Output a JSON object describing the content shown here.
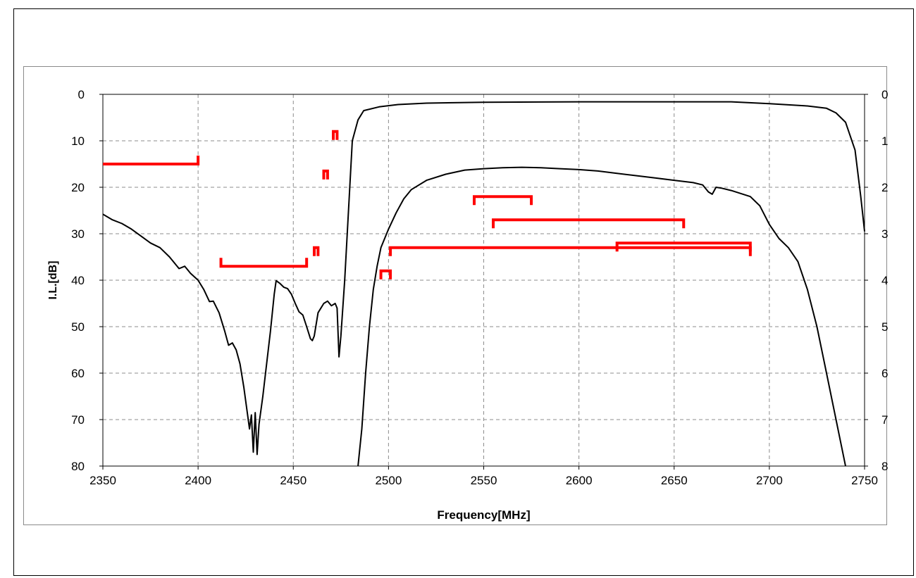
{
  "chart_data": {
    "type": "line",
    "title": "",
    "xlabel": "Frequency[MHz]",
    "ylabel": "I.L.[dB]",
    "xlim": [
      2350,
      2750
    ],
    "ylim": [
      80,
      0
    ],
    "y2lim": [
      8,
      0
    ],
    "x_ticks": [
      "2350",
      "2400",
      "2450",
      "2500",
      "2550",
      "2600",
      "2650",
      "2700",
      "2750"
    ],
    "y_ticks": [
      "0",
      "10",
      "20",
      "30",
      "40",
      "50",
      "60",
      "70",
      "80"
    ],
    "y2_ticks": [
      "0",
      "1",
      "2",
      "3",
      "4",
      "5",
      "6",
      "7",
      "8"
    ],
    "grid": true,
    "series": [
      {
        "axis": "left",
        "color": "#000000",
        "points": [
          [
            2350,
            25.8
          ],
          [
            2355,
            27
          ],
          [
            2360,
            27.8
          ],
          [
            2365,
            29
          ],
          [
            2370,
            30.5
          ],
          [
            2375,
            32
          ],
          [
            2380,
            33
          ],
          [
            2385,
            35
          ],
          [
            2390,
            37.5
          ],
          [
            2393,
            37
          ],
          [
            2396,
            38.5
          ],
          [
            2400,
            40
          ],
          [
            2403,
            42
          ],
          [
            2406,
            44.6
          ],
          [
            2408,
            44.5
          ],
          [
            2411,
            47
          ],
          [
            2414,
            51
          ],
          [
            2416,
            54
          ],
          [
            2418,
            53.5
          ],
          [
            2420,
            55
          ],
          [
            2422,
            58
          ],
          [
            2424,
            63
          ],
          [
            2426,
            69
          ],
          [
            2427,
            72
          ],
          [
            2428,
            69
          ],
          [
            2429,
            77
          ],
          [
            2430,
            68.5
          ],
          [
            2431,
            77.5
          ],
          [
            2432,
            71
          ],
          [
            2434,
            65
          ],
          [
            2436,
            58
          ],
          [
            2438,
            51
          ],
          [
            2440,
            43
          ],
          [
            2441,
            40.1
          ],
          [
            2443,
            40.7
          ],
          [
            2445,
            41.5
          ],
          [
            2447,
            41.8
          ],
          [
            2449,
            43
          ],
          [
            2451,
            45
          ],
          [
            2453,
            46.8
          ],
          [
            2455,
            47.5
          ],
          [
            2457,
            50
          ],
          [
            2459,
            52.6
          ],
          [
            2460,
            53
          ],
          [
            2461,
            52
          ],
          [
            2463,
            47
          ],
          [
            2466,
            45
          ],
          [
            2468,
            44.5
          ],
          [
            2470,
            45.5
          ],
          [
            2472,
            45
          ],
          [
            2473,
            46
          ],
          [
            2474,
            56.5
          ],
          [
            2475,
            52
          ],
          [
            2477,
            40
          ],
          [
            2479,
            25
          ],
          [
            2481,
            10
          ],
          [
            2484,
            5.5
          ],
          [
            2487,
            3.5
          ],
          [
            2495,
            2.7
          ],
          [
            2505,
            2.2
          ],
          [
            2520,
            1.9
          ],
          [
            2550,
            1.7
          ],
          [
            2600,
            1.6
          ],
          [
            2650,
            1.6
          ],
          [
            2680,
            1.6
          ],
          [
            2700,
            2.0
          ],
          [
            2720,
            2.5
          ],
          [
            2730,
            3.0
          ],
          [
            2735,
            4.0
          ],
          [
            2740,
            6.0
          ],
          [
            2745,
            12
          ],
          [
            2748,
            22
          ],
          [
            2750,
            29.5
          ]
        ]
      },
      {
        "axis": "right",
        "color": "#000000",
        "points": [
          [
            2484,
            8.0
          ],
          [
            2486,
            7.2
          ],
          [
            2488,
            6.0
          ],
          [
            2490,
            5.0
          ],
          [
            2492,
            4.2
          ],
          [
            2494,
            3.7
          ],
          [
            2496,
            3.3
          ],
          [
            2500,
            2.9
          ],
          [
            2504,
            2.55
          ],
          [
            2508,
            2.25
          ],
          [
            2512,
            2.05
          ],
          [
            2520,
            1.85
          ],
          [
            2530,
            1.72
          ],
          [
            2540,
            1.63
          ],
          [
            2550,
            1.6
          ],
          [
            2560,
            1.58
          ],
          [
            2570,
            1.57
          ],
          [
            2580,
            1.58
          ],
          [
            2590,
            1.6
          ],
          [
            2600,
            1.62
          ],
          [
            2610,
            1.65
          ],
          [
            2620,
            1.7
          ],
          [
            2630,
            1.75
          ],
          [
            2640,
            1.8
          ],
          [
            2650,
            1.85
          ],
          [
            2660,
            1.9
          ],
          [
            2665,
            1.95
          ],
          [
            2668,
            2.1
          ],
          [
            2670,
            2.15
          ],
          [
            2672,
            2.0
          ],
          [
            2675,
            2.02
          ],
          [
            2680,
            2.07
          ],
          [
            2690,
            2.2
          ],
          [
            2695,
            2.4
          ],
          [
            2700,
            2.8
          ],
          [
            2705,
            3.1
          ],
          [
            2710,
            3.3
          ],
          [
            2715,
            3.6
          ],
          [
            2720,
            4.2
          ],
          [
            2725,
            5.0
          ],
          [
            2730,
            6.0
          ],
          [
            2735,
            7.0
          ],
          [
            2738,
            7.6
          ],
          [
            2740,
            8.0
          ]
        ]
      }
    ],
    "masks": [
      {
        "color": "#ff0000",
        "x1": 2350,
        "x2": 2400,
        "y": 15,
        "tick_ends": "right",
        "tick_dir": "up"
      },
      {
        "color": "#ff0000",
        "x1": 2412,
        "x2": 2457,
        "y": 37,
        "tick_ends": "both",
        "tick_dir": "up"
      },
      {
        "color": "#ff0000",
        "x1": 2461,
        "x2": 2463,
        "y": 33,
        "tick_ends": "both",
        "tick_dir": "down"
      },
      {
        "color": "#ff0000",
        "x1": 2466,
        "x2": 2468,
        "y": 16.5,
        "tick_ends": "both",
        "tick_dir": "down"
      },
      {
        "color": "#ff0000",
        "x1": 2471,
        "x2": 2473,
        "y": 8,
        "tick_ends": "both",
        "tick_dir": "down"
      },
      {
        "color": "#ff0000",
        "x1": 2496,
        "x2": 2501,
        "y": 38,
        "tick_ends": "both",
        "tick_dir": "down"
      },
      {
        "color": "#ff0000",
        "x1": 2501,
        "x2": 2690,
        "y": 33,
        "tick_ends": "both",
        "tick_dir": "down"
      },
      {
        "color": "#ff0000",
        "x1": 2545,
        "x2": 2575,
        "y": 22,
        "tick_ends": "both",
        "tick_dir": "down"
      },
      {
        "color": "#ff0000",
        "x1": 2555,
        "x2": 2655,
        "y": 27,
        "tick_ends": "both",
        "tick_dir": "down"
      },
      {
        "color": "#ff0000",
        "x1": 2620,
        "x2": 2690,
        "y": 32,
        "tick_ends": "both",
        "tick_dir": "down"
      }
    ]
  }
}
